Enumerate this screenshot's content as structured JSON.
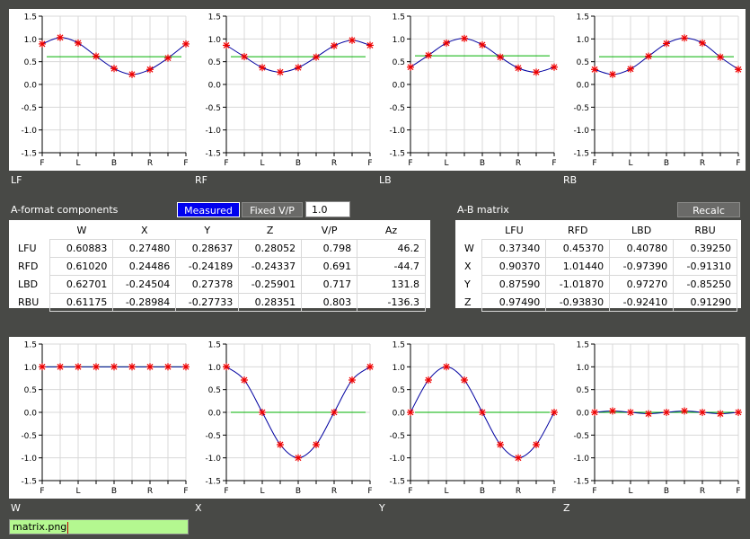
{
  "top_plots": [
    {
      "label": "LF",
      "values": [
        0.89,
        1.03,
        0.91,
        0.62,
        0.35,
        0.22,
        0.33,
        0.58,
        0.89
      ],
      "mean": 0.61
    },
    {
      "label": "RF",
      "values": [
        0.86,
        0.61,
        0.37,
        0.27,
        0.37,
        0.6,
        0.85,
        0.97,
        0.86
      ],
      "mean": 0.61
    },
    {
      "label": "LB",
      "values": [
        0.38,
        0.64,
        0.91,
        1.01,
        0.87,
        0.6,
        0.36,
        0.27,
        0.38
      ],
      "mean": 0.63
    },
    {
      "label": "RB",
      "values": [
        0.33,
        0.22,
        0.34,
        0.62,
        0.9,
        1.02,
        0.91,
        0.6,
        0.33
      ],
      "mean": 0.61
    }
  ],
  "bottom_plots": [
    {
      "label": "W",
      "values": [
        1.0,
        1.0,
        1.0,
        1.0,
        1.0,
        1.0,
        1.0,
        1.0,
        1.0
      ],
      "mean": 1.0
    },
    {
      "label": "X",
      "values": [
        1.0,
        0.71,
        0.0,
        -0.71,
        -1.0,
        -0.71,
        0.0,
        0.71,
        1.0
      ],
      "mean": 0.0
    },
    {
      "label": "Y",
      "values": [
        0.0,
        0.71,
        1.0,
        0.71,
        0.0,
        -0.71,
        -1.0,
        -0.71,
        0.0
      ],
      "mean": 0.0
    },
    {
      "label": "Z",
      "values": [
        0.0,
        0.03,
        0.0,
        -0.03,
        0.0,
        0.03,
        0.0,
        -0.03,
        0.0
      ],
      "mean": 0.0
    }
  ],
  "axis": {
    "y_ticks": [
      "1.5",
      "1.0",
      "0.5",
      "0.0",
      "-0.5",
      "-1.0",
      "-1.5"
    ],
    "x_ticks": [
      "F",
      "L",
      "B",
      "R",
      "F"
    ]
  },
  "aformat": {
    "title": "A-format components",
    "measured_label": "Measured",
    "fixed_label": "Fixed V/P",
    "fixed_value": "1.0",
    "headers": [
      "W",
      "X",
      "Y",
      "Z",
      "V/P",
      "Az"
    ],
    "rows": [
      {
        "name": "LFU",
        "cells": [
          "0.60883",
          "0.27480",
          "0.28637",
          "0.28052",
          "0.798",
          "46.2"
        ]
      },
      {
        "name": "RFD",
        "cells": [
          "0.61020",
          "0.24486",
          "-0.24189",
          "-0.24337",
          "0.691",
          "-44.7"
        ]
      },
      {
        "name": "LBD",
        "cells": [
          "0.62701",
          "-0.24504",
          "0.27378",
          "-0.25901",
          "0.717",
          "131.8"
        ]
      },
      {
        "name": "RBU",
        "cells": [
          "0.61175",
          "-0.28984",
          "-0.27733",
          "0.28351",
          "0.803",
          "-136.3"
        ]
      }
    ]
  },
  "abmatrix": {
    "title": "A-B matrix",
    "recalc_label": "Recalc",
    "headers": [
      "LFU",
      "RFD",
      "LBD",
      "RBU"
    ],
    "rows": [
      {
        "name": "W",
        "cells": [
          "0.37340",
          "0.45370",
          "0.40780",
          "0.39250"
        ]
      },
      {
        "name": "X",
        "cells": [
          "0.90370",
          "1.01440",
          "-0.97390",
          "-0.91310"
        ]
      },
      {
        "name": "Y",
        "cells": [
          "0.87590",
          "-1.01870",
          "0.97270",
          "-0.85250"
        ]
      },
      {
        "name": "Z",
        "cells": [
          "0.97490",
          "-0.93830",
          "-0.92410",
          "0.91290"
        ]
      }
    ]
  },
  "filename": "matrix.png",
  "colors": {
    "curve": "#0000a0",
    "mean": "#00b000",
    "marker": "#ee0000",
    "grid": "#d8d8d8"
  }
}
